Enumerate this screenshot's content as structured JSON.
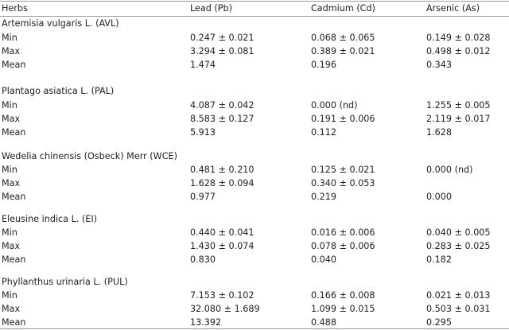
{
  "header": {
    "herbs": "Herbs",
    "lead": "Lead (Pb)",
    "cadmium": "Cadmium (Cd)",
    "arsenic": "Arsenic (As)"
  },
  "groups": [
    {
      "title": "Artemisia vulgaris L. (AVL)",
      "rows": [
        {
          "label": "Min",
          "pb": "0.247 ± 0.021",
          "cd": "0.068 ± 0.065",
          "as": "0.149 ± 0.028"
        },
        {
          "label": "Max",
          "pb": "3.294 ± 0.081",
          "cd": "0.389 ± 0.021",
          "as": "0.498 ± 0.012"
        },
        {
          "label": "Mean",
          "pb": "1.474",
          "cd": "0.196",
          "as": "0.343"
        }
      ]
    },
    {
      "title": "Plantago asiatica L. (PAL)",
      "rows": [
        {
          "label": "Min",
          "pb": "4.087 ± 0.042",
          "cd": "0.000 (nd)",
          "as": "1.255 ± 0.005"
        },
        {
          "label": "Max",
          "pb": "8.583 ± 0.127",
          "cd": "0.191 ± 0.006",
          "as": "2.119 ± 0.017"
        },
        {
          "label": "Mean",
          "pb": "5.913",
          "cd": "0.112",
          "as": "1.628"
        }
      ]
    },
    {
      "title": "Wedelia chinensis (Osbeck) Merr (WCE)",
      "rows": [
        {
          "label": "Min",
          "pb": "0.481 ± 0.210",
          "cd": "0.125 ± 0.021",
          "as": "0.000 (nd)"
        },
        {
          "label": "Max",
          "pb": "1.628 ± 0.094",
          "cd": "0.340 ± 0.053",
          "as": ""
        },
        {
          "label": "Mean",
          "pb": "0.977",
          "cd": "0.219",
          "as": "0.000"
        }
      ]
    },
    {
      "title": "Eleusine indica L. (EI)",
      "rows": [
        {
          "label": "Min",
          "pb": "0.440 ± 0.041",
          "cd": "0.016 ± 0.006",
          "as": "0.040 ± 0.005"
        },
        {
          "label": "Max",
          "pb": "1.430 ± 0.074",
          "cd": "0.078 ± 0.006",
          "as": "0.283 ± 0.025"
        },
        {
          "label": "Mean",
          "pb": "0.830",
          "cd": "0.040",
          "as": "0.182"
        }
      ]
    },
    {
      "title": "Phyllanthus urinaria L. (PUL)",
      "rows": [
        {
          "label": "Min",
          "pb": "7.153 ± 0.102",
          "cd": "0.166 ± 0.008",
          "as": "0.021 ± 0.013"
        },
        {
          "label": "Max",
          "pb": "32.080 ± 1.689",
          "cd": "1.099 ± 0.015",
          "as": "0.503 ± 0.031"
        },
        {
          "label": "Mean",
          "pb": "13.392",
          "cd": "0.488",
          "as": "0.295"
        }
      ]
    }
  ]
}
